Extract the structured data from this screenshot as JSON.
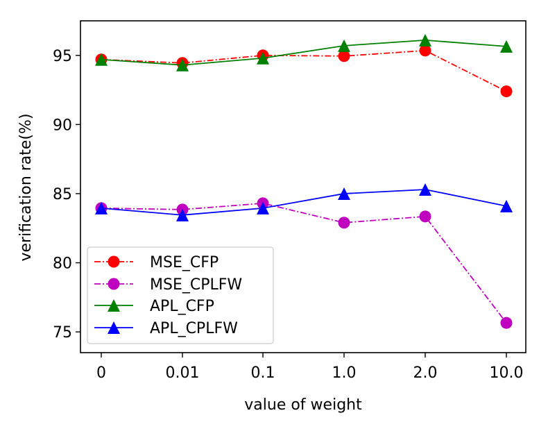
{
  "chart_data": {
    "type": "line",
    "title": "",
    "xlabel": "value of weight",
    "ylabel": "verification rate(%)",
    "categories": [
      "0",
      "0.01",
      "0.1",
      "1.0",
      "2.0",
      "10.0"
    ],
    "ylim": [
      73.5,
      97.5
    ],
    "yticks": [
      75,
      80,
      85,
      90,
      95
    ],
    "grid": false,
    "legend_position": "lower-left",
    "series": [
      {
        "name": "MSE_CFP",
        "values": [
          94.7,
          94.45,
          95.0,
          94.95,
          95.35,
          92.4
        ],
        "color": "#ff0000",
        "marker": "circle",
        "linestyle": "dashdot"
      },
      {
        "name": "MSE_CPLFW",
        "values": [
          83.95,
          83.85,
          84.3,
          82.9,
          83.35,
          75.65
        ],
        "color": "#bf00bf",
        "marker": "circle",
        "linestyle": "dashdot"
      },
      {
        "name": "APL_CFP",
        "values": [
          94.7,
          94.3,
          94.8,
          95.7,
          96.1,
          95.65
        ],
        "color": "#008000",
        "marker": "triangle",
        "linestyle": "solid"
      },
      {
        "name": "APL_CPLFW",
        "values": [
          83.95,
          83.45,
          83.95,
          85.0,
          85.3,
          84.1
        ],
        "color": "#0000ff",
        "marker": "triangle",
        "linestyle": "solid"
      }
    ]
  }
}
